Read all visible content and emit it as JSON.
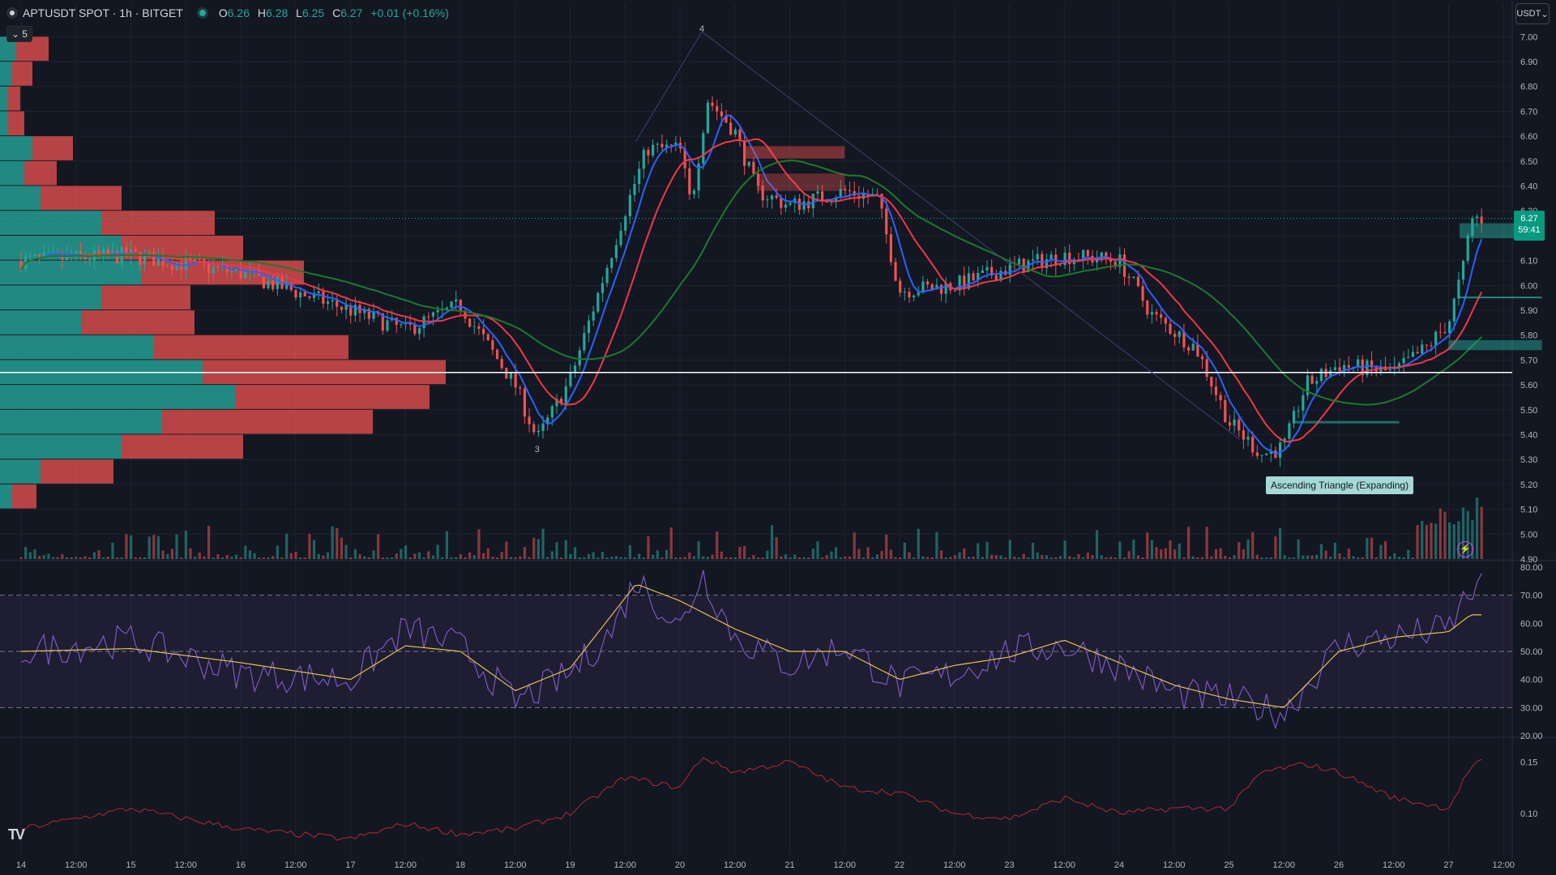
{
  "header": {
    "symbol": "APTUSDT SPOT · 1h · BITGET",
    "o_label": "O",
    "o_value": "6.26",
    "h_label": "H",
    "h_value": "6.28",
    "l_label": "L",
    "l_value": "6.25",
    "c_label": "C",
    "c_value": "6.27",
    "change": "+0.01 (+0.16%)",
    "indicators_count": "5",
    "currency": "USDT"
  },
  "price_tag": {
    "price": "6.27",
    "countdown": "59:41"
  },
  "pattern_label": "Ascending Triangle (Expanding)",
  "colors": {
    "background": "#131722",
    "up": "#26a69a",
    "down": "#ef5350",
    "ma_fast": "#2962ff",
    "ma_mid": "#f23645",
    "ma_slow": "#1b7a2c",
    "rsi": "#7e57c2",
    "rsi_ma": "#e3c14a",
    "lower_indicator": "#b22833"
  },
  "icons": [
    "symbol-icon",
    "chevron-down-icon",
    "bolt-icon",
    "tradingview-logo"
  ],
  "chart_data": [
    {
      "type": "candlestick",
      "title": "APTUSDT SPOT · 1h · BITGET",
      "ylim": [
        4.9,
        7.05
      ],
      "y_ticks": [
        "7.00",
        "6.90",
        "6.80",
        "6.70",
        "6.60",
        "6.50",
        "6.40",
        "6.30",
        "6.20",
        "6.10",
        "6.00",
        "5.90",
        "5.80",
        "5.70",
        "5.60",
        "5.50",
        "5.40",
        "5.30",
        "5.20",
        "5.10",
        "5.00",
        "4.90"
      ],
      "x_ticks": [
        "14",
        "12:00",
        "15",
        "12:00",
        "16",
        "12:00",
        "17",
        "12:00",
        "18",
        "12:00",
        "19",
        "12:00",
        "20",
        "12:00",
        "21",
        "12:00",
        "22",
        "12:00",
        "23",
        "12:00",
        "24",
        "12:00",
        "25",
        "12:00",
        "26",
        "12:00",
        "27",
        "12:00"
      ],
      "x_tick_days": [
        0,
        0.5,
        1,
        1.5,
        2,
        2.5,
        3,
        3.5,
        4,
        4.5,
        5,
        5.5,
        6,
        6.5,
        7,
        7.5,
        8,
        8.5,
        9,
        9.5,
        10,
        10.5,
        11,
        11.5,
        12,
        12.5,
        13,
        13.5
      ],
      "key_points_day_price": [
        [
          0,
          6.1
        ],
        [
          1,
          6.12
        ],
        [
          2,
          6.05
        ],
        [
          3,
          5.9
        ],
        [
          3.5,
          5.82
        ],
        [
          4,
          5.92
        ],
        [
          4.5,
          5.6
        ],
        [
          4.7,
          5.38
        ],
        [
          5,
          5.62
        ],
        [
          5.5,
          6.3
        ],
        [
          5.7,
          6.55
        ],
        [
          6,
          6.55
        ],
        [
          6.1,
          6.32
        ],
        [
          6.25,
          6.75
        ],
        [
          6.5,
          6.62
        ],
        [
          6.7,
          6.38
        ],
        [
          7,
          6.32
        ],
        [
          7.5,
          6.38
        ],
        [
          7.8,
          6.35
        ],
        [
          8,
          5.98
        ],
        [
          8.5,
          6.0
        ],
        [
          9,
          6.07
        ],
        [
          9.5,
          6.12
        ],
        [
          10,
          6.1
        ],
        [
          10.3,
          5.88
        ],
        [
          10.7,
          5.75
        ],
        [
          11,
          5.45
        ],
        [
          11.3,
          5.32
        ],
        [
          11.5,
          5.35
        ],
        [
          11.7,
          5.6
        ],
        [
          12,
          5.68
        ],
        [
          12.5,
          5.65
        ],
        [
          12.8,
          5.75
        ],
        [
          13,
          5.85
        ],
        [
          13.15,
          6.1
        ],
        [
          13.2,
          6.27
        ]
      ],
      "current_price": "6.27",
      "horizontal_line_price": 5.65,
      "wave_labels": [
        {
          "label": "4",
          "day": 6.2,
          "price": 7.02
        },
        {
          "label": "3",
          "day": 4.7,
          "price": 5.33
        }
      ],
      "trend_lines_day_price": [
        [
          [
            5.6,
            6.58
          ],
          [
            6.2,
            7.02
          ]
        ],
        [
          [
            6.2,
            7.02
          ],
          [
            9.2,
            6.02
          ]
        ],
        [
          [
            9.2,
            6.02
          ],
          [
            11.1,
            5.38
          ]
        ]
      ],
      "moving_averages": [
        "fast (blue)",
        "mid (red)",
        "slow (green)"
      ],
      "volume_profile_prices": [
        6.95,
        6.85,
        6.75,
        6.65,
        6.55,
        6.45,
        6.35,
        6.25,
        6.15,
        6.05,
        5.95,
        5.85,
        5.75,
        5.65,
        5.55,
        5.45,
        5.35,
        5.25,
        5.15
      ],
      "volume_profile_buy": [
        4,
        3,
        2,
        2,
        8,
        6,
        10,
        25,
        30,
        35,
        25,
        20,
        38,
        50,
        58,
        40,
        30,
        10,
        3
      ],
      "volume_profile_sell": [
        8,
        5,
        3,
        4,
        10,
        8,
        20,
        28,
        30,
        40,
        22,
        28,
        48,
        60,
        48,
        52,
        30,
        18,
        6
      ]
    },
    {
      "type": "line",
      "name": "RSI",
      "ylim": [
        20,
        80
      ],
      "y_ticks": [
        "80.00",
        "70.00",
        "60.00",
        "50.00",
        "40.00",
        "30.00",
        "20.00"
      ],
      "bands": [
        30,
        50,
        70
      ],
      "rsi_key_points": [
        [
          0,
          50
        ],
        [
          1,
          54
        ],
        [
          2,
          42
        ],
        [
          3,
          40
        ],
        [
          3.5,
          58
        ],
        [
          4,
          52
        ],
        [
          4.5,
          32
        ],
        [
          5,
          42
        ],
        [
          5.4,
          58
        ],
        [
          5.6,
          76
        ],
        [
          6,
          58
        ],
        [
          6.2,
          78
        ],
        [
          6.5,
          55
        ],
        [
          7,
          45
        ],
        [
          7.5,
          52
        ],
        [
          8,
          38
        ],
        [
          8.5,
          42
        ],
        [
          9,
          50
        ],
        [
          9.5,
          52
        ],
        [
          10,
          45
        ],
        [
          10.5,
          35
        ],
        [
          11,
          33
        ],
        [
          11.5,
          28
        ],
        [
          12,
          52
        ],
        [
          12.5,
          55
        ],
        [
          13,
          58
        ],
        [
          13.2,
          72
        ]
      ],
      "ma_key_points": [
        [
          0,
          50
        ],
        [
          1,
          51
        ],
        [
          2,
          46
        ],
        [
          3,
          40
        ],
        [
          3.5,
          52
        ],
        [
          4,
          50
        ],
        [
          4.5,
          36
        ],
        [
          5,
          44
        ],
        [
          5.4,
          64
        ],
        [
          5.6,
          74
        ],
        [
          6,
          68
        ],
        [
          6.5,
          58
        ],
        [
          7,
          50
        ],
        [
          7.5,
          50
        ],
        [
          8,
          40
        ],
        [
          8.5,
          45
        ],
        [
          9,
          48
        ],
        [
          9.5,
          54
        ],
        [
          10,
          46
        ],
        [
          10.5,
          38
        ],
        [
          11,
          33
        ],
        [
          11.5,
          30
        ],
        [
          12,
          50
        ],
        [
          12.5,
          55
        ],
        [
          13,
          57
        ],
        [
          13.2,
          63
        ]
      ]
    },
    {
      "type": "line",
      "name": "lower indicator",
      "ylim": [
        0.06,
        0.17
      ],
      "y_ticks": [
        "0.15",
        "0.10"
      ],
      "key_points": [
        [
          0,
          0.085
        ],
        [
          1,
          0.105
        ],
        [
          2,
          0.085
        ],
        [
          3,
          0.075
        ],
        [
          3.5,
          0.09
        ],
        [
          4,
          0.08
        ],
        [
          4.5,
          0.085
        ],
        [
          5,
          0.1
        ],
        [
          5.5,
          0.135
        ],
        [
          6,
          0.125
        ],
        [
          6.2,
          0.155
        ],
        [
          6.5,
          0.14
        ],
        [
          7,
          0.15
        ],
        [
          7.5,
          0.125
        ],
        [
          8,
          0.12
        ],
        [
          8.5,
          0.1
        ],
        [
          9,
          0.095
        ],
        [
          9.5,
          0.115
        ],
        [
          10,
          0.1
        ],
        [
          10.5,
          0.105
        ],
        [
          11,
          0.105
        ],
        [
          11.3,
          0.14
        ],
        [
          11.7,
          0.148
        ],
        [
          12,
          0.14
        ],
        [
          12.5,
          0.115
        ],
        [
          13,
          0.105
        ],
        [
          13.2,
          0.145
        ],
        [
          13.4,
          0.155
        ]
      ]
    }
  ]
}
